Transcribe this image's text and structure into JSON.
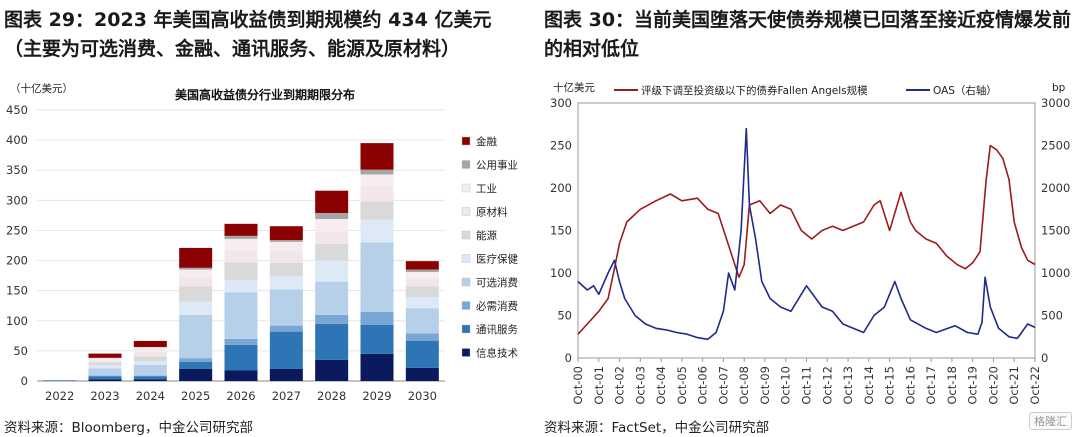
{
  "figures": [
    {
      "title": "图表 29：2023 年美国高收益债到期规模约 434 亿美元（主要为可选消费、金融、通讯服务、能源及原材料）",
      "source": "资料来源：Bloomberg，中金公司研究部"
    },
    {
      "title": "图表 30：当前美国堕落天使债券规模已回落至接近疫情爆发前的相对低位",
      "source": "资料来源：FactSet，中金公司研究部"
    }
  ],
  "watermark": "格隆汇",
  "chart_data": [
    {
      "type": "bar",
      "stacked": true,
      "title": "美国高收益债分行业到期期限分布",
      "ylabel": "（十亿美元）",
      "ylim": [
        0,
        450
      ],
      "yticks": [
        0,
        50,
        100,
        150,
        200,
        250,
        300,
        350,
        400,
        450
      ],
      "categories": [
        "2022",
        "2023",
        "2024",
        "2025",
        "2026",
        "2027",
        "2028",
        "2029",
        "2030"
      ],
      "series": [
        {
          "name": "信息技术",
          "color": "#0b1a5e",
          "values": [
            0.5,
            3,
            3,
            20,
            18,
            20,
            35,
            45,
            22
          ]
        },
        {
          "name": "通讯服务",
          "color": "#2e75b6",
          "values": [
            0.5,
            5,
            5,
            12,
            42,
            62,
            60,
            48,
            45
          ]
        },
        {
          "name": "必需消费",
          "color": "#7aa6d4",
          "values": [
            0.2,
            1,
            1,
            6,
            10,
            10,
            15,
            22,
            12
          ]
        },
        {
          "name": "可选消费",
          "color": "#b7d0ea",
          "values": [
            0.3,
            12,
            18,
            72,
            77,
            60,
            55,
            115,
            42
          ]
        },
        {
          "name": "医疗保健",
          "color": "#dde9f5",
          "values": [
            0,
            5,
            6,
            22,
            20,
            22,
            35,
            38,
            18
          ]
        },
        {
          "name": "能源",
          "color": "#d9d9d9",
          "values": [
            0,
            5,
            8,
            25,
            30,
            22,
            28,
            30,
            18
          ]
        },
        {
          "name": "原材料",
          "color": "#f2e6ea",
          "values": [
            0,
            3,
            7,
            15,
            20,
            20,
            20,
            25,
            13
          ]
        },
        {
          "name": "工业",
          "color": "#f7ecf0",
          "values": [
            0,
            4,
            8,
            13,
            19,
            15,
            21,
            20,
            11
          ]
        },
        {
          "name": "公用事业",
          "color": "#a6a6a6",
          "values": [
            0,
            0.5,
            0.5,
            3,
            5,
            3,
            10,
            8,
            4
          ]
        },
        {
          "name": "金融",
          "color": "#8b0000",
          "values": [
            0,
            7,
            10,
            33,
            20,
            23,
            37,
            44,
            14
          ]
        }
      ],
      "legend_order": [
        "金融",
        "公用事业",
        "工业",
        "原材料",
        "能源",
        "医疗保健",
        "可选消费",
        "必需消费",
        "通讯服务",
        "信息技术"
      ],
      "legend": "right"
    },
    {
      "type": "line",
      "title": "",
      "ylabel_left": "十亿美元",
      "ylabel_right": "bp",
      "ylim_left": [
        0,
        300
      ],
      "ylim_right": [
        0,
        3000
      ],
      "yticks_left": [
        0,
        50,
        100,
        150,
        200,
        250,
        300
      ],
      "yticks_right": [
        0,
        500,
        1000,
        1500,
        2000,
        2500,
        3000
      ],
      "x_labels": [
        "Oct-00",
        "Oct-01",
        "Oct-02",
        "Oct-03",
        "Oct-04",
        "Oct-05",
        "Oct-06",
        "Oct-07",
        "Oct-08",
        "Oct-09",
        "Oct-10",
        "Oct-11",
        "Oct-12",
        "Oct-13",
        "Oct-14",
        "Oct-15",
        "Oct-16",
        "Oct-17",
        "Oct-18",
        "Oct-19",
        "Oct-20",
        "Oct-21",
        "Oct-22"
      ],
      "series": [
        {
          "name": "评级下调至投资级以下的债券Fallen Angels规模",
          "axis": "left",
          "color": "#9b1c1c",
          "x": [
            2000.75,
            2001.2,
            2001.75,
            2002.2,
            2002.5,
            2002.75,
            2003.1,
            2003.75,
            2004.5,
            2005.2,
            2005.75,
            2006.5,
            2007.0,
            2007.5,
            2007.9,
            2008.3,
            2008.5,
            2008.75,
            2009.0,
            2009.5,
            2010.0,
            2010.5,
            2011.0,
            2011.5,
            2012.0,
            2012.5,
            2013.0,
            2013.5,
            2014.0,
            2014.5,
            2015.0,
            2015.3,
            2015.75,
            2016.3,
            2016.75,
            2017.0,
            2017.5,
            2018.0,
            2018.5,
            2019.0,
            2019.4,
            2019.75,
            2020.1,
            2020.4,
            2020.6,
            2020.9,
            2021.2,
            2021.5,
            2021.75,
            2022.1,
            2022.4,
            2022.75
          ],
          "y": [
            28,
            40,
            55,
            70,
            105,
            135,
            160,
            175,
            185,
            193,
            185,
            188,
            175,
            170,
            140,
            110,
            95,
            110,
            180,
            185,
            170,
            180,
            175,
            150,
            140,
            150,
            155,
            150,
            155,
            160,
            180,
            185,
            150,
            195,
            160,
            150,
            140,
            135,
            120,
            110,
            105,
            112,
            125,
            210,
            250,
            245,
            235,
            210,
            160,
            130,
            115,
            110
          ]
        },
        {
          "name": "OAS（右轴）",
          "axis": "right",
          "color": "#1f2a8c",
          "x": [
            2000.75,
            2001.2,
            2001.5,
            2001.75,
            2002.2,
            2002.5,
            2002.75,
            2003.0,
            2003.5,
            2004.0,
            2004.5,
            2005.0,
            2005.5,
            2006.0,
            2006.5,
            2007.0,
            2007.4,
            2007.75,
            2008.0,
            2008.3,
            2008.6,
            2008.85,
            2009.0,
            2009.3,
            2009.6,
            2010.0,
            2010.5,
            2011.0,
            2011.75,
            2012.5,
            2013.0,
            2013.5,
            2014.0,
            2014.5,
            2015.0,
            2015.5,
            2016.0,
            2016.3,
            2016.75,
            2017.5,
            2018.0,
            2018.9,
            2019.5,
            2020.0,
            2020.2,
            2020.35,
            2020.6,
            2021.0,
            2021.5,
            2021.9,
            2022.4,
            2022.75
          ],
          "y": [
            900,
            800,
            850,
            750,
            1000,
            1150,
            900,
            700,
            500,
            400,
            350,
            330,
            300,
            280,
            240,
            220,
            300,
            550,
            1000,
            800,
            1500,
            2700,
            1800,
            1400,
            900,
            700,
            600,
            550,
            850,
            600,
            550,
            400,
            350,
            300,
            500,
            600,
            900,
            700,
            450,
            350,
            300,
            380,
            300,
            280,
            420,
            950,
            600,
            350,
            250,
            230,
            400,
            360
          ]
        }
      ],
      "legend": "top"
    }
  ]
}
